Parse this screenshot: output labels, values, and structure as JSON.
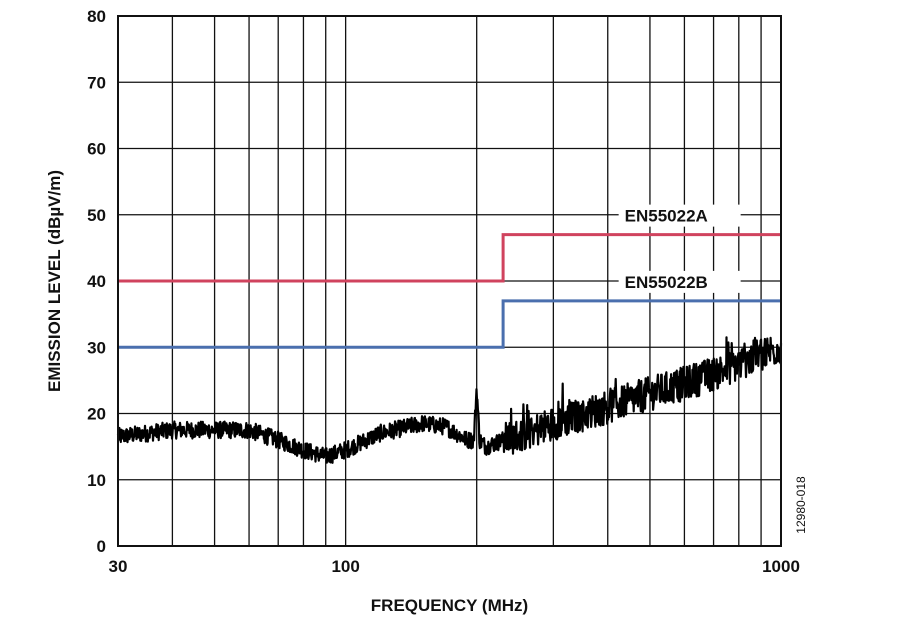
{
  "chart_data": {
    "type": "line",
    "xlabel": "FREQUENCY (MHz)",
    "ylabel": "EMISSION LEVEL (dBµV/m)",
    "x_scale": "log",
    "xlim": [
      30,
      1000
    ],
    "ylim": [
      0,
      80
    ],
    "x_ticks": [
      30,
      100,
      1000
    ],
    "y_ticks": [
      0,
      10,
      20,
      30,
      40,
      50,
      60,
      70,
      80
    ],
    "x_minor_gridlines": [
      40,
      50,
      60,
      70,
      80,
      90,
      200,
      300,
      400,
      500,
      600,
      700,
      800,
      900
    ],
    "grid": true,
    "figure_id": "12980-018",
    "series": [
      {
        "name": "EN55022A",
        "color": "#d0435e",
        "x": [
          30,
          230,
          230,
          1000
        ],
        "y": [
          40,
          40,
          47,
          47
        ]
      },
      {
        "name": "EN55022B",
        "color": "#4a6fae",
        "x": [
          30,
          230,
          230,
          1000
        ],
        "y": [
          30,
          30,
          37,
          37
        ]
      },
      {
        "name": "",
        "color": "#000000",
        "x": [
          30,
          40,
          50,
          60,
          70,
          80,
          90,
          100,
          120,
          150,
          170,
          190,
          197,
          200,
          203,
          210,
          230,
          260,
          300,
          400,
          500,
          600,
          700,
          800,
          900,
          1000
        ],
        "y": [
          16.5,
          17.5,
          17.5,
          17.5,
          16,
          14.5,
          13.5,
          14.5,
          17,
          18.5,
          18,
          16,
          16,
          24,
          16,
          15,
          16,
          17,
          18.5,
          21,
          23,
          24.5,
          26,
          27.5,
          29,
          30
        ]
      }
    ]
  }
}
